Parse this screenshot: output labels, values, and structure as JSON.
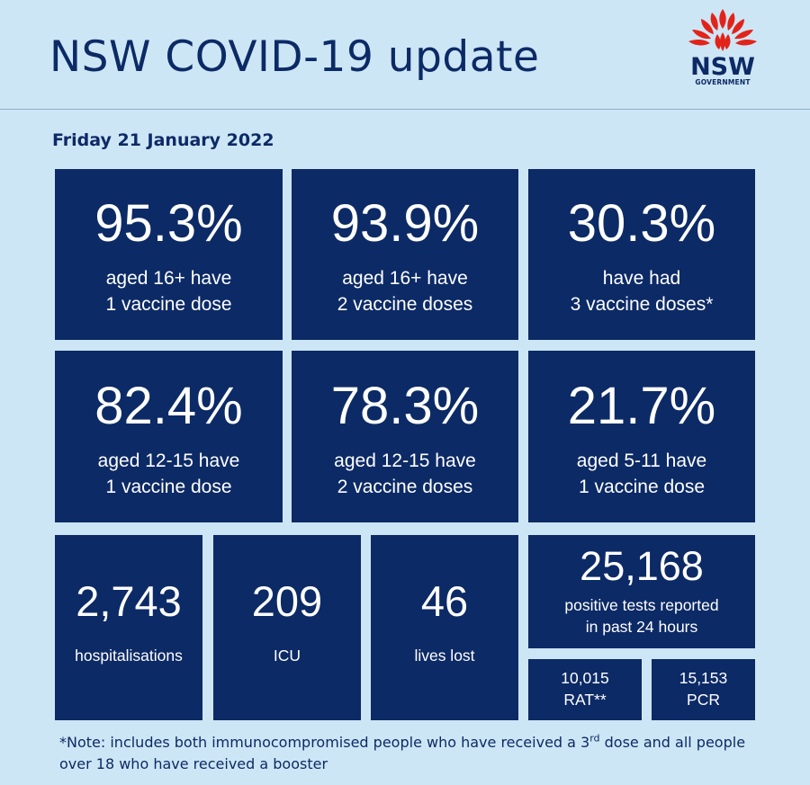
{
  "header": {
    "title": "NSW COVID-19 update",
    "logo": {
      "name": "NSW",
      "sub": "GOVERNMENT",
      "icon": "waratah-flower-icon",
      "flower_color": "#e2231a"
    }
  },
  "date": "Friday 21 January 2022",
  "tiles_top": [
    {
      "value": "95.3%",
      "line1": "aged 16+ have",
      "line2": "1 vaccine dose"
    },
    {
      "value": "93.9%",
      "line1": "aged 16+ have",
      "line2": "2 vaccine doses"
    },
    {
      "value": "30.3%",
      "line1": "have had",
      "line2": "3 vaccine doses*"
    }
  ],
  "tiles_mid": [
    {
      "value": "82.4%",
      "line1": "aged 12-15 have",
      "line2": "1 vaccine dose"
    },
    {
      "value": "78.3%",
      "line1": "aged 12-15 have",
      "line2": "2 vaccine doses"
    },
    {
      "value": "21.7%",
      "line1": "aged 5-11 have",
      "line2": "1 vaccine dose"
    }
  ],
  "tiles_bottom": [
    {
      "value": "2,743",
      "label": "hospitalisations"
    },
    {
      "value": "209",
      "label": "ICU"
    },
    {
      "value": "46",
      "label": "lives lost"
    }
  ],
  "tests": {
    "value": "25,168",
    "line1": "positive tests reported",
    "line2": "in past 24 hours",
    "rat": {
      "value": "10,015",
      "label": "RAT**"
    },
    "pcr": {
      "value": "15,153",
      "label": "PCR"
    }
  },
  "note": {
    "part1": "*Note: includes both immunocompromised people who have received a 3",
    "sup": "rd",
    "part2": " dose and all people over 18 who have received  a booster"
  },
  "colors": {
    "background": "#cde6f5",
    "tile": "#0c2a66",
    "text_dark": "#0c2a66"
  }
}
